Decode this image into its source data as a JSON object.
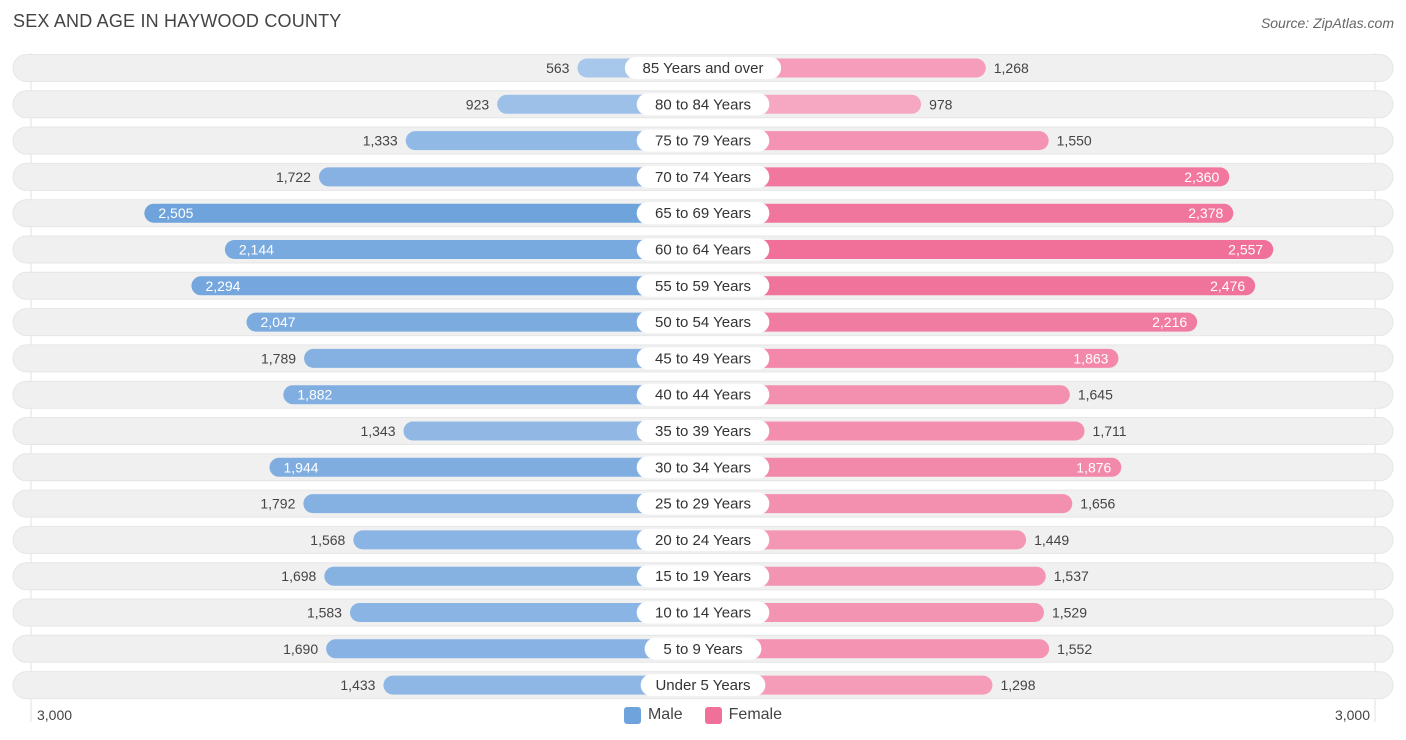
{
  "title": "SEX AND AGE IN HAYWOOD COUNTY",
  "source": "Source: ZipAtlas.com",
  "axis": {
    "left_label": "3,000",
    "right_label": "3,000"
  },
  "legend": {
    "male": "Male",
    "female": "Female"
  },
  "colors": {
    "male": "#6fa3dc",
    "male_light": "#a9c8ec",
    "female": "#f07099",
    "female_light": "#f6aac3",
    "track": "#f0f0f0"
  },
  "chart_data": {
    "type": "bar",
    "orientation": "horizontal-diverging",
    "title": "SEX AND AGE IN HAYWOOD COUNTY",
    "xlim": [
      -3000,
      3000
    ],
    "categories": [
      "85 Years and over",
      "80 to 84 Years",
      "75 to 79 Years",
      "70 to 74 Years",
      "65 to 69 Years",
      "60 to 64 Years",
      "55 to 59 Years",
      "50 to 54 Years",
      "45 to 49 Years",
      "40 to 44 Years",
      "35 to 39 Years",
      "30 to 34 Years",
      "25 to 29 Years",
      "20 to 24 Years",
      "15 to 19 Years",
      "10 to 14 Years",
      "5 to 9 Years",
      "Under 5 Years"
    ],
    "series": [
      {
        "name": "Male",
        "values": [
          563,
          923,
          1333,
          1722,
          2505,
          2144,
          2294,
          2047,
          1789,
          1882,
          1343,
          1944,
          1792,
          1568,
          1698,
          1583,
          1690,
          1433
        ],
        "labels": [
          "563",
          "923",
          "1,333",
          "1,722",
          "2,505",
          "2,144",
          "2,294",
          "2,047",
          "1,789",
          "1,882",
          "1,343",
          "1,944",
          "1,792",
          "1,568",
          "1,698",
          "1,583",
          "1,690",
          "1,433"
        ]
      },
      {
        "name": "Female",
        "values": [
          1268,
          978,
          1550,
          2360,
          2378,
          2557,
          2476,
          2216,
          1863,
          1645,
          1711,
          1876,
          1656,
          1449,
          1537,
          1529,
          1552,
          1298
        ],
        "labels": [
          "1,268",
          "978",
          "1,550",
          "2,360",
          "2,378",
          "2,557",
          "2,476",
          "2,216",
          "1,863",
          "1,645",
          "1,711",
          "1,876",
          "1,656",
          "1,449",
          "1,537",
          "1,529",
          "1,552",
          "1,298"
        ]
      }
    ],
    "legend_position": "bottom-center"
  }
}
